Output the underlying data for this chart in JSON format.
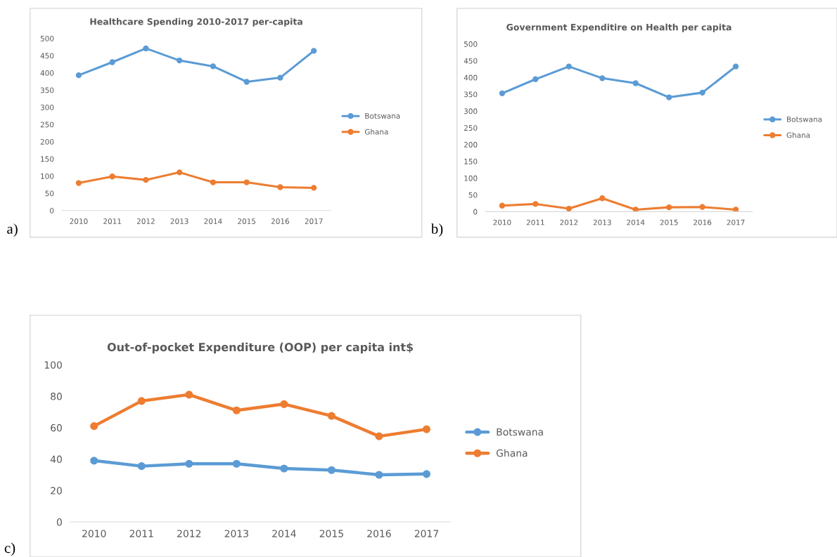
{
  "chart_data": [
    {
      "type": "line",
      "title": "Healthcare Spending 2010-2017 per-capita",
      "categories": [
        "2010",
        "2011",
        "2012",
        "2013",
        "2014",
        "2015",
        "2016",
        "2017"
      ],
      "series": [
        {
          "name": "Botswana",
          "color": "#5b9bd5",
          "values": [
            393,
            431,
            471,
            436,
            419,
            374,
            386,
            464
          ]
        },
        {
          "name": "Ghana",
          "color": "#ed7d31",
          "values": [
            80,
            99,
            89,
            111,
            82,
            82,
            68,
            66
          ]
        }
      ],
      "ylim": [
        0,
        500
      ],
      "yticks": [
        0,
        50,
        100,
        150,
        200,
        250,
        300,
        350,
        400,
        450,
        500
      ],
      "grid": false,
      "legend": "right",
      "marker": "circle",
      "line_style": "solid",
      "annotations": [
        "a)"
      ]
    },
    {
      "type": "line",
      "title": "Government Expenditire on Health per capita",
      "categories": [
        "2010",
        "2011",
        "2012",
        "2013",
        "2014",
        "2015",
        "2016",
        "2017"
      ],
      "series": [
        {
          "name": "Botswana",
          "color": "#5b9bd5",
          "values": [
            353,
            395,
            433,
            398,
            383,
            341,
            355,
            433
          ]
        },
        {
          "name": "Ghana",
          "color": "#ed7d31",
          "values": [
            18,
            23,
            9,
            40,
            6,
            13,
            14,
            6
          ]
        }
      ],
      "ylim": [
        0,
        500
      ],
      "yticks": [
        0,
        50,
        100,
        150,
        200,
        250,
        300,
        350,
        400,
        450,
        500
      ],
      "grid": false,
      "legend": "right",
      "marker": "circle",
      "line_style": "solid",
      "annotations": [
        "b)"
      ]
    },
    {
      "type": "line",
      "title": "Out-of-pocket Expenditure (OOP) per capita int$",
      "categories": [
        "2010",
        "2011",
        "2012",
        "2013",
        "2014",
        "2015",
        "2016",
        "2017"
      ],
      "series": [
        {
          "name": "Botswana",
          "color": "#5b9bd5",
          "values": [
            39,
            35.5,
            37,
            37,
            34,
            33,
            30,
            30.5
          ]
        },
        {
          "name": "Ghana",
          "color": "#ed7d31",
          "values": [
            61,
            77,
            81,
            71,
            75,
            67.5,
            54.5,
            59
          ]
        }
      ],
      "ylim": [
        0,
        100
      ],
      "yticks": [
        0,
        20,
        40,
        60,
        80,
        100
      ],
      "grid": false,
      "legend": "right",
      "marker": "circle",
      "line_style": "solid",
      "annotations": [
        "c)"
      ]
    }
  ]
}
